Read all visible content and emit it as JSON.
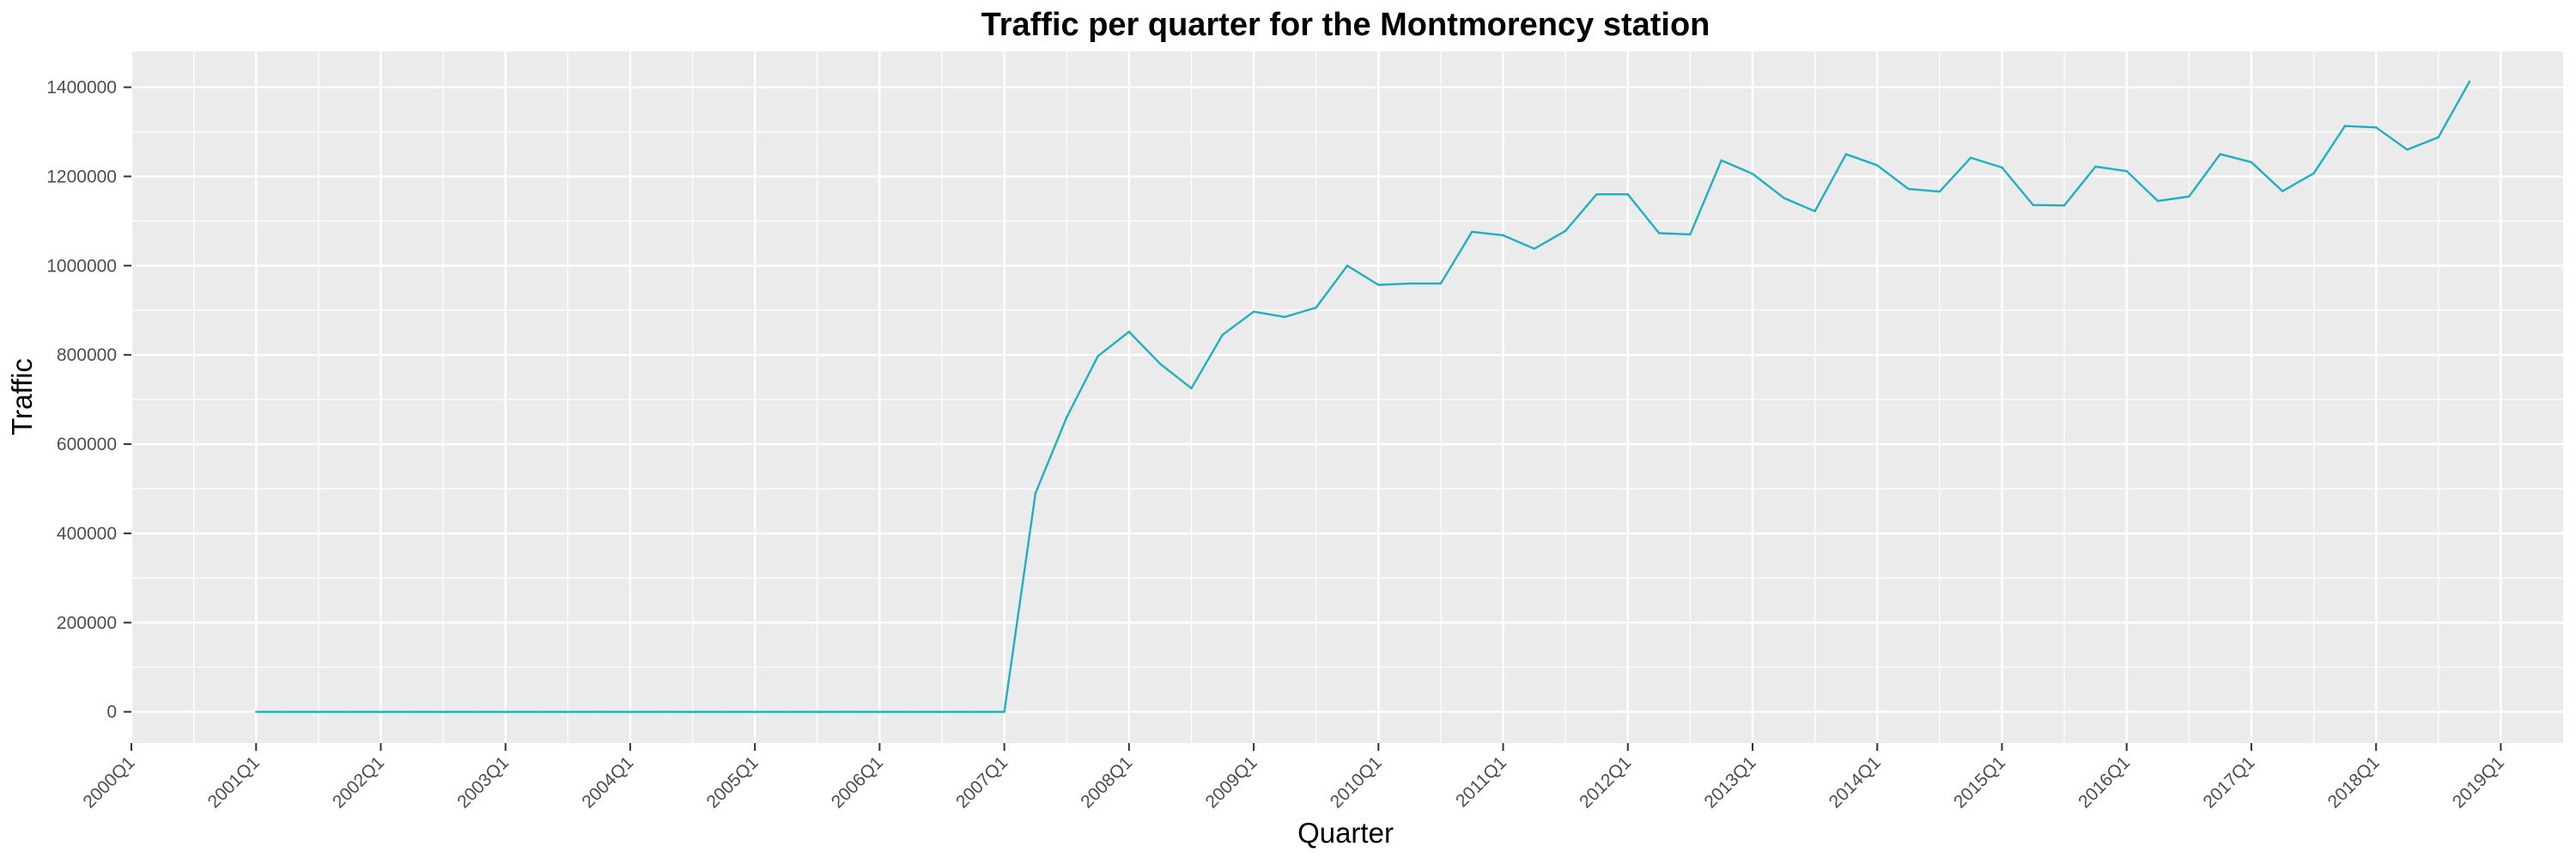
{
  "chart_data": {
    "type": "line",
    "title": "Traffic per quarter for the Montmorency station",
    "xlabel": "Quarter",
    "ylabel": "Traffic",
    "x_ticks": [
      "2000Q1",
      "2001Q1",
      "2002Q1",
      "2003Q1",
      "2004Q1",
      "2005Q1",
      "2006Q1",
      "2007Q1",
      "2008Q1",
      "2009Q1",
      "2010Q1",
      "2011Q1",
      "2012Q1",
      "2013Q1",
      "2014Q1",
      "2015Q1",
      "2016Q1",
      "2017Q1",
      "2018Q1",
      "2019Q1"
    ],
    "y_ticks": [
      0,
      200000,
      400000,
      600000,
      800000,
      1000000,
      1200000,
      1400000
    ],
    "y_tick_labels": [
      "0",
      "200000",
      "400000",
      "600000",
      "800000",
      "1000000",
      "1200000",
      "1400000"
    ],
    "ylim": [
      -70000,
      1480000
    ],
    "xlim": [
      "2000Q1",
      "2019Q3"
    ],
    "grid": true,
    "line_color": "#1FB0C0",
    "panel_color": "#EBEBEB",
    "series": [
      {
        "x": [
          "2001Q1",
          "2001Q2",
          "2001Q3",
          "2001Q4",
          "2002Q1",
          "2002Q2",
          "2002Q3",
          "2002Q4",
          "2003Q1",
          "2003Q2",
          "2003Q3",
          "2003Q4",
          "2004Q1",
          "2004Q2",
          "2004Q3",
          "2004Q4",
          "2005Q1",
          "2005Q2",
          "2005Q3",
          "2005Q4",
          "2006Q1",
          "2006Q2",
          "2006Q3",
          "2006Q4",
          "2007Q1",
          "2007Q2",
          "2007Q3",
          "2007Q4",
          "2008Q1",
          "2008Q2",
          "2008Q3",
          "2008Q4",
          "2009Q1",
          "2009Q2",
          "2009Q3",
          "2009Q4",
          "2010Q1",
          "2010Q2",
          "2010Q3",
          "2010Q4",
          "2011Q1",
          "2011Q2",
          "2011Q3",
          "2011Q4",
          "2012Q1",
          "2012Q2",
          "2012Q3",
          "2012Q4",
          "2013Q1",
          "2013Q2",
          "2013Q3",
          "2013Q4",
          "2014Q1",
          "2014Q2",
          "2014Q3",
          "2014Q4",
          "2015Q1",
          "2015Q2",
          "2015Q3",
          "2015Q4",
          "2016Q1",
          "2016Q2",
          "2016Q3",
          "2016Q4",
          "2017Q1",
          "2017Q2",
          "2017Q3",
          "2017Q4",
          "2018Q1",
          "2018Q2",
          "2018Q3",
          "2018Q4"
        ],
        "values": [
          0,
          0,
          0,
          0,
          0,
          0,
          0,
          0,
          0,
          0,
          0,
          0,
          0,
          0,
          0,
          0,
          0,
          0,
          0,
          0,
          0,
          0,
          0,
          0,
          0,
          490000,
          660000,
          797000,
          852000,
          780000,
          725000,
          845000,
          897000,
          885000,
          906000,
          1000000,
          957000,
          960000,
          960000,
          1076000,
          1068000,
          1038000,
          1078000,
          1160000,
          1160000,
          1073000,
          1070000,
          1236000,
          1206000,
          1152000,
          1122000,
          1250000,
          1225000,
          1172000,
          1166000,
          1242000,
          1220000,
          1136000,
          1135000,
          1222000,
          1212000,
          1145000,
          1155000,
          1250000,
          1232000,
          1167000,
          1207000,
          1313000,
          1310000,
          1260000,
          1288000,
          1413000
        ]
      }
    ]
  }
}
